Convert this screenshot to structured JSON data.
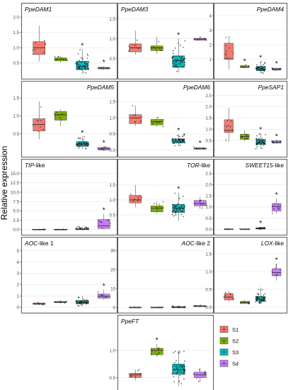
{
  "figure": {
    "ylabel": "Relative expression",
    "legend": {
      "title": "",
      "placement": "bottom-right",
      "entries": [
        {
          "label": "S1",
          "color": "#f07a70"
        },
        {
          "label": "S2",
          "color": "#7cae00"
        },
        {
          "label": "S3",
          "color": "#00bfc4"
        },
        {
          "label": "S4",
          "color": "#c77cff"
        }
      ]
    }
  },
  "chart_data": [
    {
      "type": "box",
      "title": "PpeDAM1",
      "title_italic": true,
      "title_align": "left",
      "ylim": [
        0.15,
        2.05
      ],
      "yticks": [
        0.5,
        1.0,
        1.5,
        2.0
      ],
      "yticklabels": [
        "0.5",
        "1.0",
        "1.5",
        "2.0"
      ],
      "categories": [
        "S1",
        "S2",
        "S3",
        "S4"
      ],
      "boxes": [
        {
          "q1": 0.78,
          "median": 1.0,
          "q3": 1.2,
          "low": 0.55,
          "high": 1.72
        },
        {
          "q1": 0.57,
          "median": 0.62,
          "q3": 0.67,
          "low": 0.52,
          "high": 0.72
        },
        {
          "q1": 0.28,
          "median": 0.38,
          "q3": 0.56,
          "low": 0.15,
          "high": 0.95
        },
        {
          "q1": 0.31,
          "median": 0.33,
          "q3": 0.36,
          "low": 0.28,
          "high": 0.4
        }
      ],
      "significant": [
        false,
        false,
        true,
        true
      ]
    },
    {
      "type": "box",
      "title": "PpeDAM3",
      "title_italic": true,
      "title_align": "left",
      "ylim": [
        0.12,
        1.58
      ],
      "yticks": [
        0.5,
        1.0,
        1.5
      ],
      "yticklabels": [
        "0.5",
        "1.0",
        "1.5"
      ],
      "categories": [
        "S1",
        "S2",
        "S3",
        "S4"
      ],
      "boxes": [
        {
          "q1": 0.67,
          "median": 0.77,
          "q3": 0.87,
          "low": 0.6,
          "high": 1.2
        },
        {
          "q1": 0.7,
          "median": 0.77,
          "q3": 0.82,
          "low": 0.62,
          "high": 1.05
        },
        {
          "q1": 0.28,
          "median": 0.45,
          "q3": 0.57,
          "low": 0.15,
          "high": 1.0
        },
        {
          "q1": 0.96,
          "median": 0.99,
          "q3": 1.01,
          "low": 0.95,
          "high": 1.05
        }
      ],
      "significant": [
        false,
        false,
        true,
        false
      ]
    },
    {
      "type": "box",
      "title": "PpeDAM4",
      "title_italic": true,
      "title_align": "right",
      "ylim": [
        0.0,
        4.0
      ],
      "yticks": [
        1,
        2,
        3,
        4
      ],
      "yticklabels": [
        "1",
        "2",
        "3",
        "4"
      ],
      "categories": [
        "S1",
        "S2",
        "S3",
        "S4"
      ],
      "boxes": [
        {
          "q1": 1.0,
          "median": 1.02,
          "q3": 2.1,
          "low": 0.3,
          "high": 2.6
        },
        {
          "q1": 0.42,
          "median": 0.47,
          "q3": 0.55,
          "low": 0.38,
          "high": 0.62
        },
        {
          "q1": 0.22,
          "median": 0.3,
          "q3": 0.5,
          "low": 0.02,
          "high": 0.85
        },
        {
          "q1": 0.25,
          "median": 0.3,
          "q3": 0.38,
          "low": 0.2,
          "high": 0.45
        }
      ],
      "significant": [
        false,
        true,
        true,
        true
      ]
    },
    {
      "type": "box",
      "title": "PpeDAM5",
      "title_italic": true,
      "title_align": "right",
      "ylim": [
        0.0,
        1.62
      ],
      "yticks": [
        0.5,
        1.0,
        1.5
      ],
      "yticklabels": [
        "0.5",
        "1.0",
        "1.5"
      ],
      "categories": [
        "S1",
        "S2",
        "S3",
        "S4"
      ],
      "boxes": [
        {
          "q1": 0.58,
          "median": 0.76,
          "q3": 0.92,
          "low": 0.35,
          "high": 1.4
        },
        {
          "q1": 0.88,
          "median": 1.03,
          "q3": 1.12,
          "low": 0.72,
          "high": 1.18
        },
        {
          "q1": 0.15,
          "median": 0.22,
          "q3": 0.28,
          "low": 0.08,
          "high": 0.42
        },
        {
          "q1": 0.05,
          "median": 0.08,
          "q3": 0.12,
          "low": 0.02,
          "high": 0.15
        }
      ],
      "significant": [
        false,
        false,
        true,
        true
      ]
    },
    {
      "type": "box",
      "title": "PpeDAM6",
      "title_italic": true,
      "title_align": "right",
      "ylim": [
        -0.05,
        1.75
      ],
      "yticks": [
        0.0,
        0.5,
        1.0,
        1.5
      ],
      "yticklabels": [
        "0.0",
        "0.5",
        "1.0",
        "1.5"
      ],
      "categories": [
        "S1",
        "S2",
        "S3",
        "S4"
      ],
      "boxes": [
        {
          "q1": 0.82,
          "median": 1.0,
          "q3": 1.1,
          "low": 0.75,
          "high": 1.38
        },
        {
          "q1": 0.78,
          "median": 0.88,
          "q3": 0.95,
          "low": 0.72,
          "high": 1.03
        },
        {
          "q1": 0.22,
          "median": 0.28,
          "q3": 0.35,
          "low": 0.12,
          "high": 0.5
        },
        {
          "q1": 0.03,
          "median": 0.05,
          "q3": 0.07,
          "low": 0.0,
          "high": 0.1
        }
      ],
      "significant": [
        false,
        false,
        true,
        true
      ]
    },
    {
      "type": "box",
      "title": "PpeSAP1",
      "title_italic": true,
      "title_align": "right",
      "ylim": [
        0.0,
        2.58
      ],
      "yticks": [
        0.5,
        1.0,
        1.5,
        2.0,
        2.5
      ],
      "yticklabels": [
        "0.5",
        "1.0",
        "1.5",
        "2.0",
        "2.5"
      ],
      "categories": [
        "S1",
        "S2",
        "S3",
        "S4"
      ],
      "boxes": [
        {
          "q1": 0.85,
          "median": 0.95,
          "q3": 1.42,
          "low": 0.45,
          "high": 1.95
        },
        {
          "q1": 0.55,
          "median": 0.68,
          "q3": 0.78,
          "low": 0.48,
          "high": 0.95
        },
        {
          "q1": 0.32,
          "median": 0.4,
          "q3": 0.55,
          "low": 0.12,
          "high": 0.82
        },
        {
          "q1": 0.38,
          "median": 0.42,
          "q3": 0.48,
          "low": 0.35,
          "high": 0.52
        }
      ],
      "significant": [
        false,
        false,
        true,
        true
      ]
    },
    {
      "type": "box",
      "title": "TIP-like",
      "title_prefix_italic": "TIP",
      "title_suffix": "-like",
      "title_align": "left",
      "ylim": [
        -0.05,
        15.5
      ],
      "yticks": [
        0.0,
        2.5,
        5.0,
        7.5,
        10.0,
        12.5,
        15.0
      ],
      "yticklabels": [
        "0.0",
        "2.5",
        "5.0",
        "7.5",
        "10.0",
        "12.5",
        "15.0"
      ],
      "categories": [
        "S1",
        "S2",
        "S3",
        "S4"
      ],
      "boxes": [
        {
          "q1": 0.02,
          "median": 0.05,
          "q3": 0.08,
          "low": 0.0,
          "high": 0.12
        },
        {
          "q1": 0.03,
          "median": 0.05,
          "q3": 0.08,
          "low": 0.0,
          "high": 0.1
        },
        {
          "q1": 0.03,
          "median": 0.08,
          "q3": 0.2,
          "low": 0.0,
          "high": 0.8
        },
        {
          "q1": 0.3,
          "median": 1.0,
          "q3": 2.7,
          "low": 0.1,
          "high": 4.2
        }
      ],
      "significant": [
        false,
        false,
        false,
        true
      ]
    },
    {
      "type": "box",
      "title": "TOR-like",
      "title_prefix_italic": "TOR",
      "title_suffix": "-like",
      "title_align": "right",
      "ylim": [
        0.0,
        1.95
      ],
      "yticks": [
        0.5,
        1.0,
        1.5
      ],
      "yticklabels": [
        "0.5",
        "1.0",
        "1.5"
      ],
      "categories": [
        "S1",
        "S2",
        "S3",
        "S4"
      ],
      "boxes": [
        {
          "q1": 0.9,
          "median": 1.0,
          "q3": 1.15,
          "low": 0.75,
          "high": 1.5
        },
        {
          "q1": 0.6,
          "median": 0.72,
          "q3": 0.8,
          "low": 0.55,
          "high": 0.95
        },
        {
          "q1": 0.58,
          "median": 0.72,
          "q3": 0.85,
          "low": 0.3,
          "high": 1.25
        },
        {
          "q1": 0.8,
          "median": 0.88,
          "q3": 0.98,
          "low": 0.7,
          "high": 1.1
        }
      ],
      "significant": [
        false,
        false,
        true,
        false
      ]
    },
    {
      "type": "box",
      "title": "SWEET15-like",
      "title_prefix_italic": "SWEET15",
      "title_suffix": "-like",
      "title_align": "right",
      "ylim": [
        -0.02,
        2.58
      ],
      "yticks": [
        0.0,
        0.5,
        1.0,
        1.5,
        2.0,
        2.5
      ],
      "yticklabels": [
        "0.0",
        "0.5",
        "1.0",
        "1.5",
        "2.0",
        "2.5"
      ],
      "categories": [
        "S1",
        "S2",
        "S3",
        "S4"
      ],
      "boxes": [
        {
          "q1": 0.0,
          "median": 0.01,
          "q3": 0.02,
          "low": 0.0,
          "high": 0.03
        },
        {
          "q1": 0.0,
          "median": 0.01,
          "q3": 0.02,
          "low": 0.0,
          "high": 0.03
        },
        {
          "q1": 0.02,
          "median": 0.04,
          "q3": 0.06,
          "low": 0.0,
          "high": 0.1
        },
        {
          "q1": 0.82,
          "median": 1.02,
          "q3": 1.15,
          "low": 0.7,
          "high": 1.38
        }
      ],
      "significant": [
        false,
        false,
        true,
        true
      ]
    },
    {
      "type": "box",
      "title": "AOC-like 1",
      "title_prefix_italic": "AOC",
      "title_suffix": "-like 1",
      "title_align": "left",
      "ylim": [
        -0.05,
        5.1
      ],
      "yticks": [
        0,
        1,
        2,
        3,
        4,
        5
      ],
      "yticklabels": [
        "0",
        "1",
        "2",
        "3",
        "4",
        "5"
      ],
      "categories": [
        "S1",
        "S2",
        "S3",
        "S4"
      ],
      "boxes": [
        {
          "q1": 0.25,
          "median": 0.3,
          "q3": 0.38,
          "low": 0.18,
          "high": 0.42
        },
        {
          "q1": 0.4,
          "median": 0.45,
          "q3": 0.5,
          "low": 0.32,
          "high": 0.55
        },
        {
          "q1": 0.3,
          "median": 0.42,
          "q3": 0.6,
          "low": 0.1,
          "high": 1.0
        },
        {
          "q1": 0.8,
          "median": 0.95,
          "q3": 1.15,
          "low": 0.65,
          "high": 1.55
        }
      ],
      "significant": [
        false,
        false,
        false,
        true
      ]
    },
    {
      "type": "box",
      "title": "AOC-like 2",
      "title_prefix_italic": "AOC",
      "title_suffix": "-like 2",
      "title_align": "right",
      "ylim": [
        -0.05,
        30.5
      ],
      "yticks": [
        0,
        10,
        20,
        30
      ],
      "yticklabels": [
        "0",
        "10",
        "20",
        "30"
      ],
      "categories": [
        "S1",
        "S2",
        "S3",
        "S4"
      ],
      "boxes": [
        {
          "q1": 0.1,
          "median": 0.2,
          "q3": 0.3,
          "low": 0.0,
          "high": 0.4
        },
        {
          "q1": 0.1,
          "median": 0.2,
          "q3": 0.3,
          "low": 0.0,
          "high": 0.4
        },
        {
          "q1": 0.1,
          "median": 0.25,
          "q3": 0.4,
          "low": 0.0,
          "high": 0.8
        },
        {
          "q1": 0.5,
          "median": 0.8,
          "q3": 1.1,
          "low": 0.3,
          "high": 1.5
        }
      ],
      "significant": [
        false,
        false,
        false,
        false
      ]
    },
    {
      "type": "box",
      "title": "LOX-like",
      "title_prefix_italic": "LOX",
      "title_suffix": "-like",
      "title_align": "right",
      "ylim": [
        -0.02,
        1.62
      ],
      "yticks": [
        0.0,
        0.5,
        1.0,
        1.5
      ],
      "yticklabels": [
        "0.0",
        "0.5",
        "1.0",
        "1.5"
      ],
      "categories": [
        "S1",
        "S2",
        "S3",
        "S4"
      ],
      "boxes": [
        {
          "q1": 0.2,
          "median": 0.28,
          "q3": 0.38,
          "low": 0.15,
          "high": 0.45
        },
        {
          "q1": 0.1,
          "median": 0.13,
          "q3": 0.16,
          "low": 0.08,
          "high": 0.2
        },
        {
          "q1": 0.16,
          "median": 0.22,
          "q3": 0.3,
          "low": 0.08,
          "high": 0.55
        },
        {
          "q1": 0.88,
          "median": 0.97,
          "q3": 1.08,
          "low": 0.75,
          "high": 1.22
        }
      ],
      "significant": [
        false,
        false,
        false,
        true
      ]
    },
    {
      "type": "box",
      "title": "PpeFT",
      "title_italic": true,
      "title_align": "left",
      "ylim": [
        0.35,
        1.42
      ],
      "yticks": [
        0.5,
        1.0
      ],
      "yticklabels": [
        "0.5",
        "1.0"
      ],
      "categories": [
        "S1",
        "S2",
        "S3",
        "S4"
      ],
      "boxes": [
        {
          "q1": 0.5,
          "median": 0.55,
          "q3": 0.58,
          "low": 0.45,
          "high": 0.65
        },
        {
          "q1": 0.92,
          "median": 1.0,
          "q3": 1.04,
          "low": 0.88,
          "high": 1.12
        },
        {
          "q1": 0.56,
          "median": 0.65,
          "q3": 0.75,
          "low": 0.35,
          "high": 1.0
        },
        {
          "q1": 0.5,
          "median": 0.55,
          "q3": 0.6,
          "low": 0.42,
          "high": 0.68
        }
      ],
      "significant": [
        false,
        true,
        false,
        false
      ]
    }
  ]
}
